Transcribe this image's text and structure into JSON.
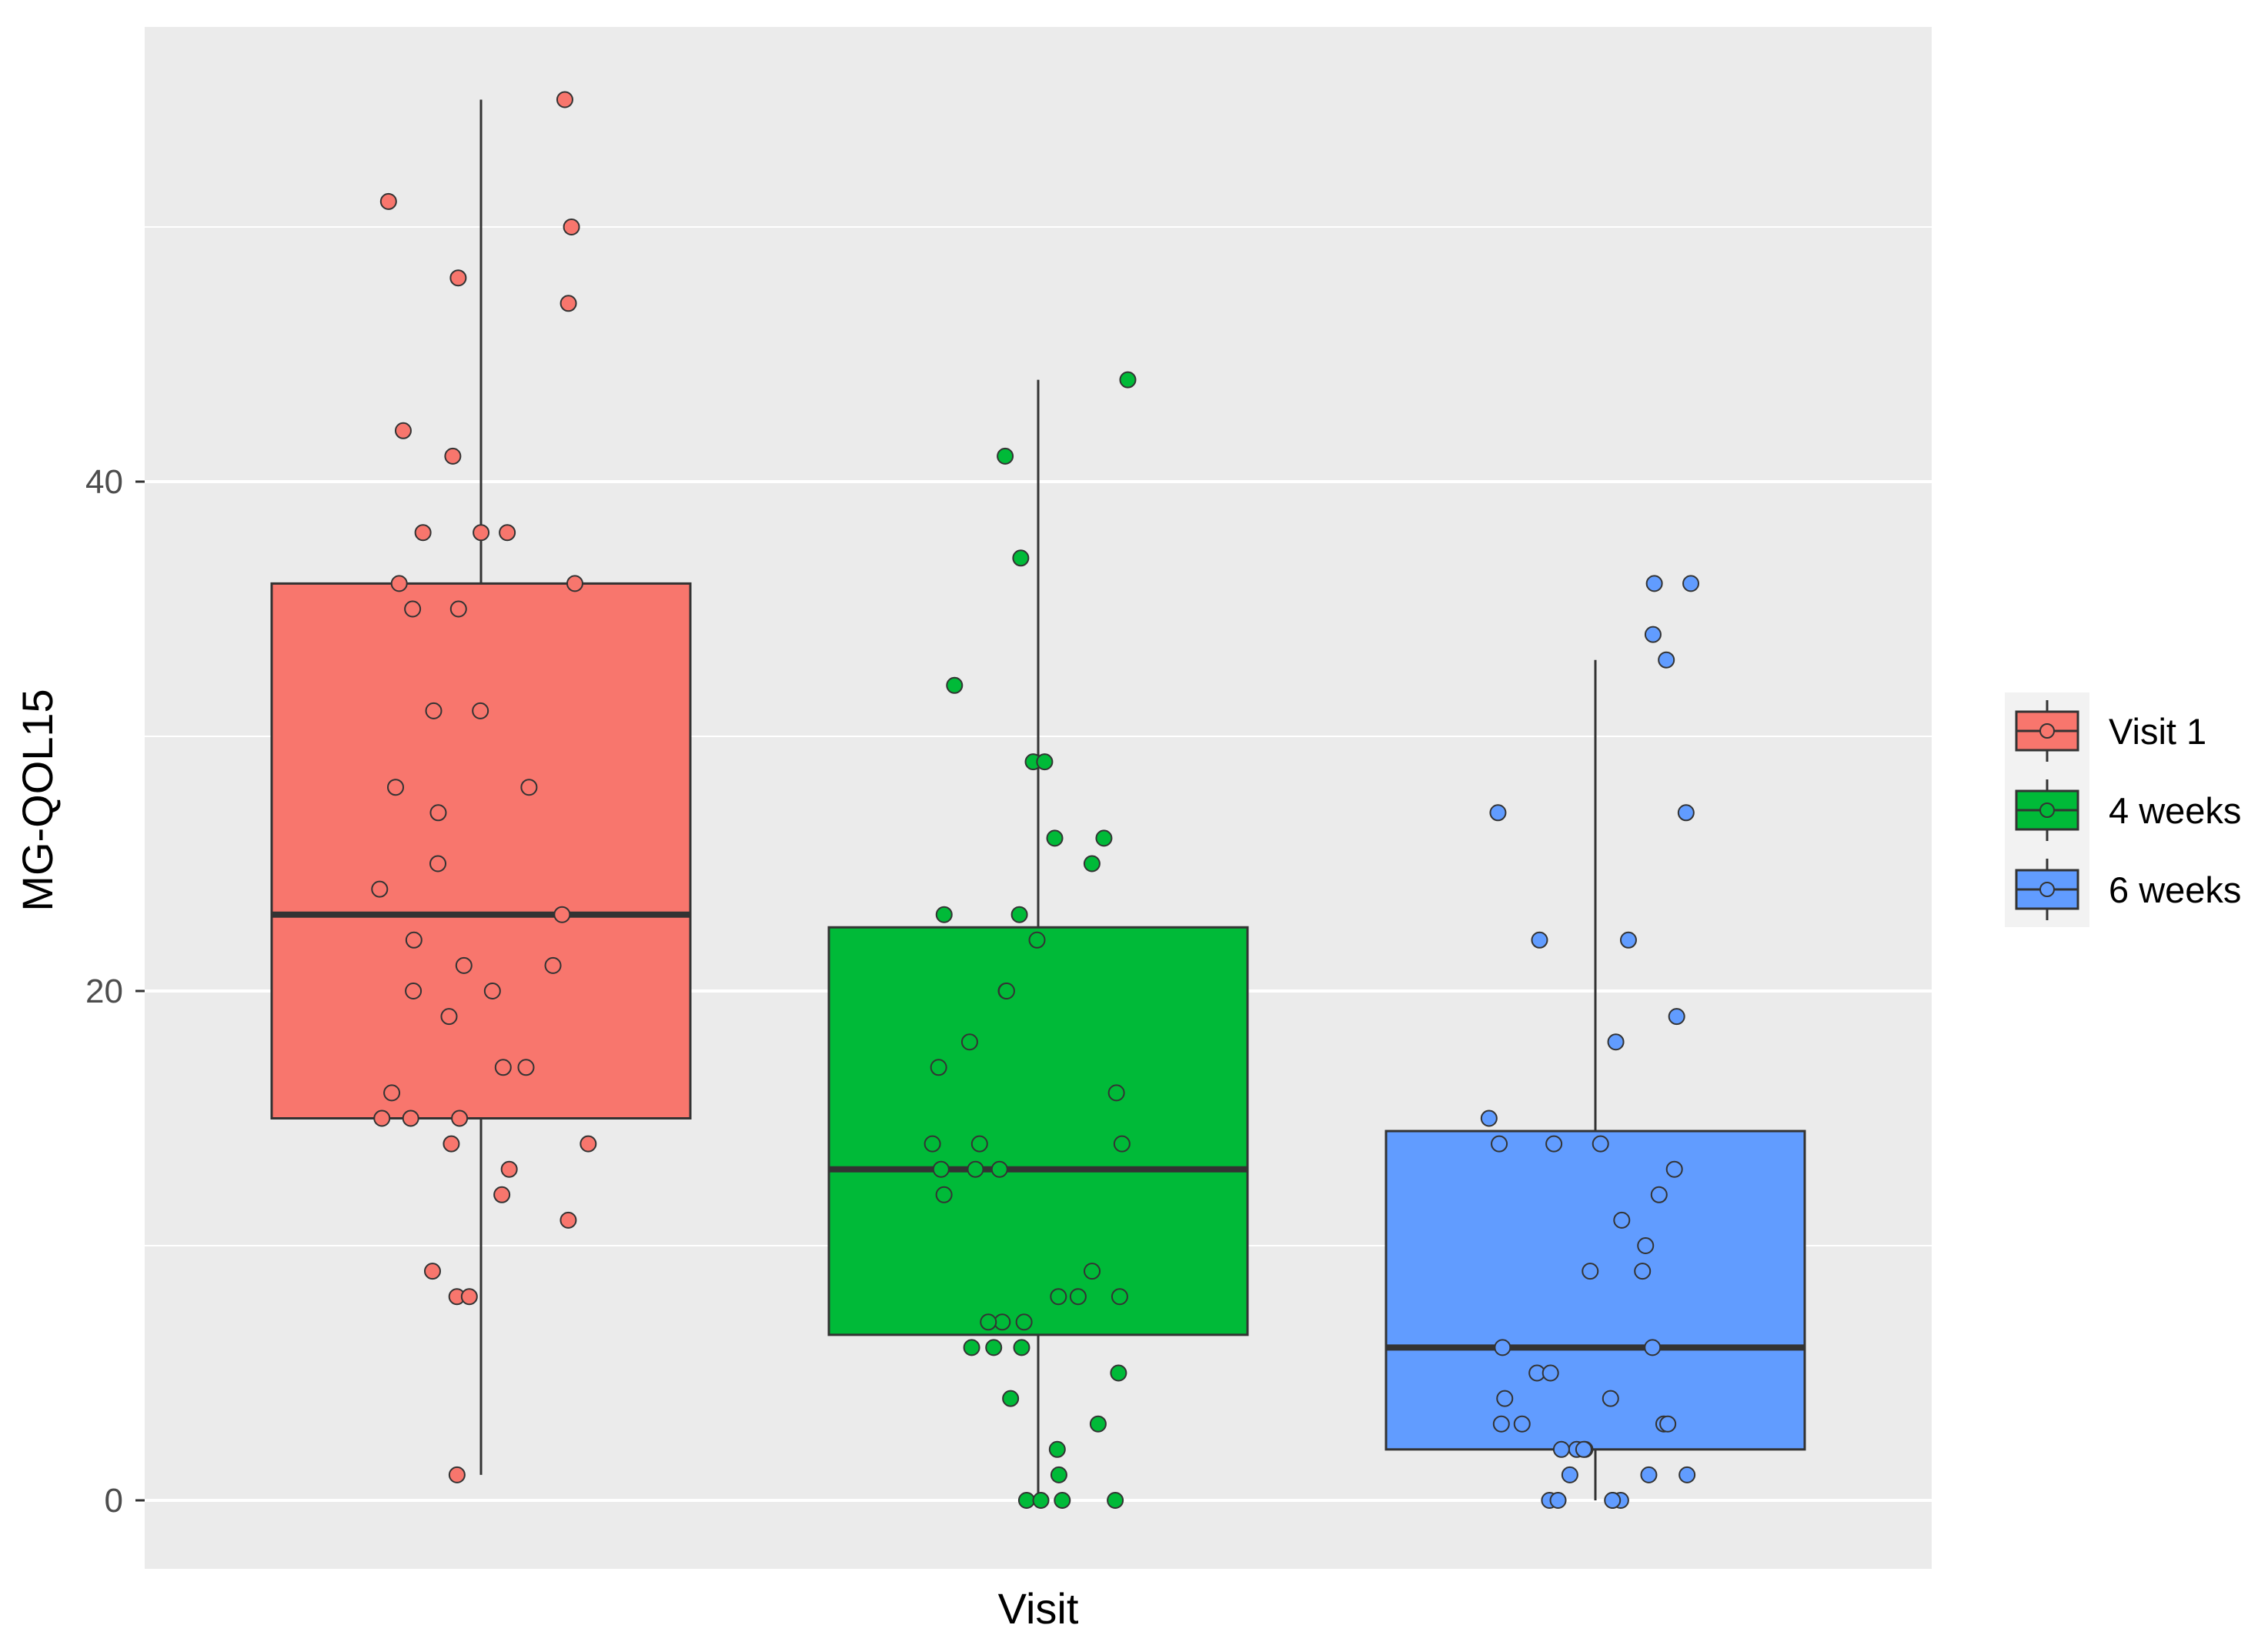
{
  "chart_data": {
    "type": "box",
    "xlabel": "Visit",
    "ylabel": "MG-QOL15",
    "ylim": [
      -2.7,
      57.8
    ],
    "yticks": [
      0,
      20,
      40
    ],
    "grid": true,
    "legend_position": "right",
    "series": [
      {
        "name": "Visit 1",
        "color": "#F8766D",
        "box": {
          "min": 1,
          "q1": 15,
          "median": 23,
          "q3": 36,
          "max": 55
        },
        "points": [
          55,
          50,
          51,
          48,
          47,
          42,
          41,
          38,
          38,
          38,
          36,
          36,
          35,
          35,
          31,
          31,
          28,
          28,
          27,
          25,
          24,
          23,
          22,
          21,
          21,
          20,
          20,
          19,
          17,
          17,
          16,
          15,
          15,
          15,
          14,
          14,
          13,
          12,
          11,
          9,
          8,
          8,
          1
        ]
      },
      {
        "name": "4 weeks",
        "color": "#00BA38",
        "box": {
          "min": 0,
          "q1": 6.5,
          "median": 13,
          "q3": 22.5,
          "max": 44
        },
        "points": [
          44,
          41,
          37,
          32,
          29,
          29,
          26,
          26,
          25,
          23,
          23,
          22,
          20,
          20,
          18,
          17,
          16,
          14,
          14,
          14,
          13,
          13,
          13,
          12,
          9,
          8,
          8,
          8,
          7,
          7,
          7,
          6,
          6,
          6,
          5,
          4,
          3,
          2,
          1,
          0,
          0,
          0,
          0
        ]
      },
      {
        "name": "6 weeks",
        "color": "#619CFF",
        "box": {
          "min": 0,
          "q1": 2,
          "median": 6,
          "q3": 14.5,
          "max": 33
        },
        "points": [
          36,
          36,
          34,
          33,
          27,
          27,
          22,
          22,
          19,
          18,
          15,
          14,
          14,
          14,
          13,
          12,
          11,
          10,
          9,
          9,
          6,
          6,
          5,
          5,
          4,
          4,
          3,
          3,
          3,
          3,
          2,
          2,
          2,
          2,
          1,
          1,
          1,
          0,
          0,
          0,
          0,
          0
        ]
      }
    ]
  }
}
